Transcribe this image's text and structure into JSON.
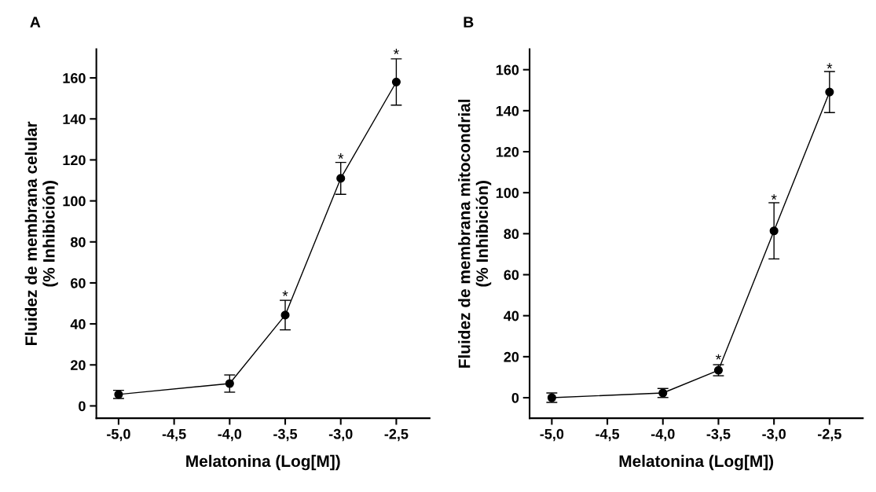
{
  "chart_data": [
    {
      "type": "line",
      "title": "A",
      "xlabel": "Melatonina (Log[M])",
      "ylabel": "Fluidez de membrana celular\n(% Inhibición)",
      "x": [
        -5.0,
        -4.0,
        -3.5,
        -3.0,
        -2.5
      ],
      "series": [
        {
          "color": "#000000",
          "values": [
            5.6,
            10.9,
            44.3,
            111,
            158
          ],
          "errors": [
            2,
            4.2,
            7.2,
            7.8,
            11.3
          ]
        }
      ],
      "xlim": [
        -5.2,
        -2.2
      ],
      "xticks": [
        {
          "value": -5.0,
          "label": "-5,0"
        },
        {
          "value": -4.5,
          "label": "-4,5"
        },
        {
          "value": -4.0,
          "label": "-4,0"
        },
        {
          "value": -3.5,
          "label": "-3,5"
        },
        {
          "value": -3.0,
          "label": "-3,0"
        },
        {
          "value": -2.5,
          "label": "-2,5"
        }
      ],
      "ylim": [
        -6,
        174
      ],
      "yticks": [
        0,
        20,
        40,
        60,
        80,
        100,
        120,
        140,
        160
      ],
      "marker": "circle",
      "line_style": "solid",
      "grid": false,
      "legend": false,
      "annotations": [
        {
          "text": "*",
          "x": -3.5,
          "y": 53
        },
        {
          "text": "*",
          "x": -3.0,
          "y": 120
        },
        {
          "text": "*",
          "x": -2.5,
          "y": 171
        }
      ]
    },
    {
      "type": "line",
      "title": "B",
      "xlabel": "Melatonina (Log[M])",
      "ylabel": "Fluidez de membrana mitocondrial\n(% Inhibición)",
      "x": [
        -5.0,
        -4.0,
        -3.5,
        -3.0,
        -2.5
      ],
      "series": [
        {
          "color": "#000000",
          "values": [
            0,
            2.3,
            13.4,
            81.4,
            149.1
          ],
          "errors": [
            2.3,
            2.2,
            2.7,
            13.7,
            10
          ]
        }
      ],
      "xlim": [
        -5.2,
        -2.2
      ],
      "xticks": [
        {
          "value": -5.0,
          "label": "-5,0"
        },
        {
          "value": -4.5,
          "label": "-4,5"
        },
        {
          "value": -4.0,
          "label": "-4,0"
        },
        {
          "value": -3.5,
          "label": "-3,5"
        },
        {
          "value": -3.0,
          "label": "-3,0"
        },
        {
          "value": -2.5,
          "label": "-2,5"
        }
      ],
      "ylim": [
        -10,
        170
      ],
      "yticks": [
        0,
        20,
        40,
        60,
        80,
        100,
        120,
        140,
        160
      ],
      "marker": "circle",
      "line_style": "solid",
      "grid": false,
      "legend": false,
      "annotations": [
        {
          "text": "*",
          "x": -3.5,
          "y": 18
        },
        {
          "text": "*",
          "x": -3.0,
          "y": 96
        },
        {
          "text": "*",
          "x": -2.5,
          "y": 160
        }
      ]
    }
  ]
}
